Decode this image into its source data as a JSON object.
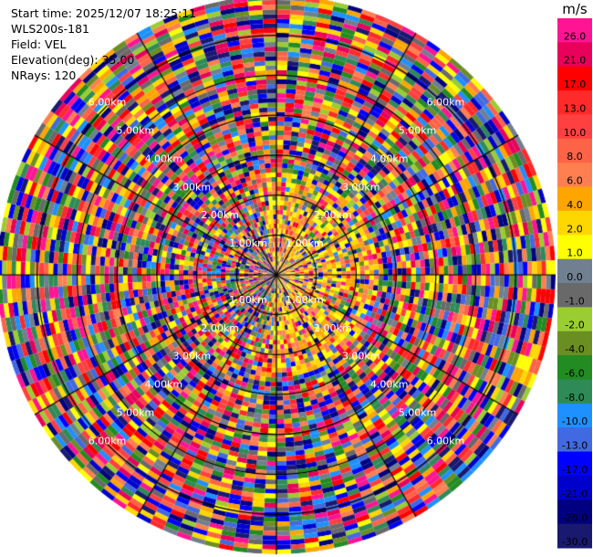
{
  "info": {
    "start_time": "Start time: 2025/12/07 18:25:11",
    "site": "WLS200s-181",
    "field": "Field: VEL",
    "elevation": "Elevation(deg): 35.00",
    "nrays": "NRays: 120"
  },
  "chart_data": {
    "type": "heatmap",
    "projection": "polar-ppi",
    "n_rays": 120,
    "max_range_km": 7.0,
    "range_rings_km": [
      1.0,
      2.0,
      3.0,
      4.0,
      5.0,
      6.0
    ],
    "ring_labels": [
      "1.00km",
      "2.00km",
      "3.00km",
      "4.00km",
      "5.00km",
      "6.00km"
    ],
    "grid": true,
    "colorbar": {
      "unit": "m/s",
      "position": "right",
      "tick_labels": [
        "26.0",
        "21.0",
        "17.0",
        "13.0",
        "10.0",
        "8.0",
        "6.0",
        "4.0",
        "2.0",
        "1.0",
        "0.0",
        "-1.0",
        "-2.0",
        "-4.0",
        "-6.0",
        "-8.0",
        "-10.0",
        "-13.0",
        "-17.0",
        "-21.0",
        "-26.0",
        "-30.0"
      ],
      "colors": [
        "#ff1493",
        "#e8005a",
        "#ff0000",
        "#ff2a2a",
        "#ff4040",
        "#ff6347",
        "#ff7f50",
        "#ffa500",
        "#ffd700",
        "#ffff00",
        "#708090",
        "#696969",
        "#9acd32",
        "#6b8e23",
        "#228b22",
        "#2e8b57",
        "#1e90ff",
        "#4169e1",
        "#0000ff",
        "#0000cd",
        "#000080",
        "#191970"
      ]
    }
  }
}
